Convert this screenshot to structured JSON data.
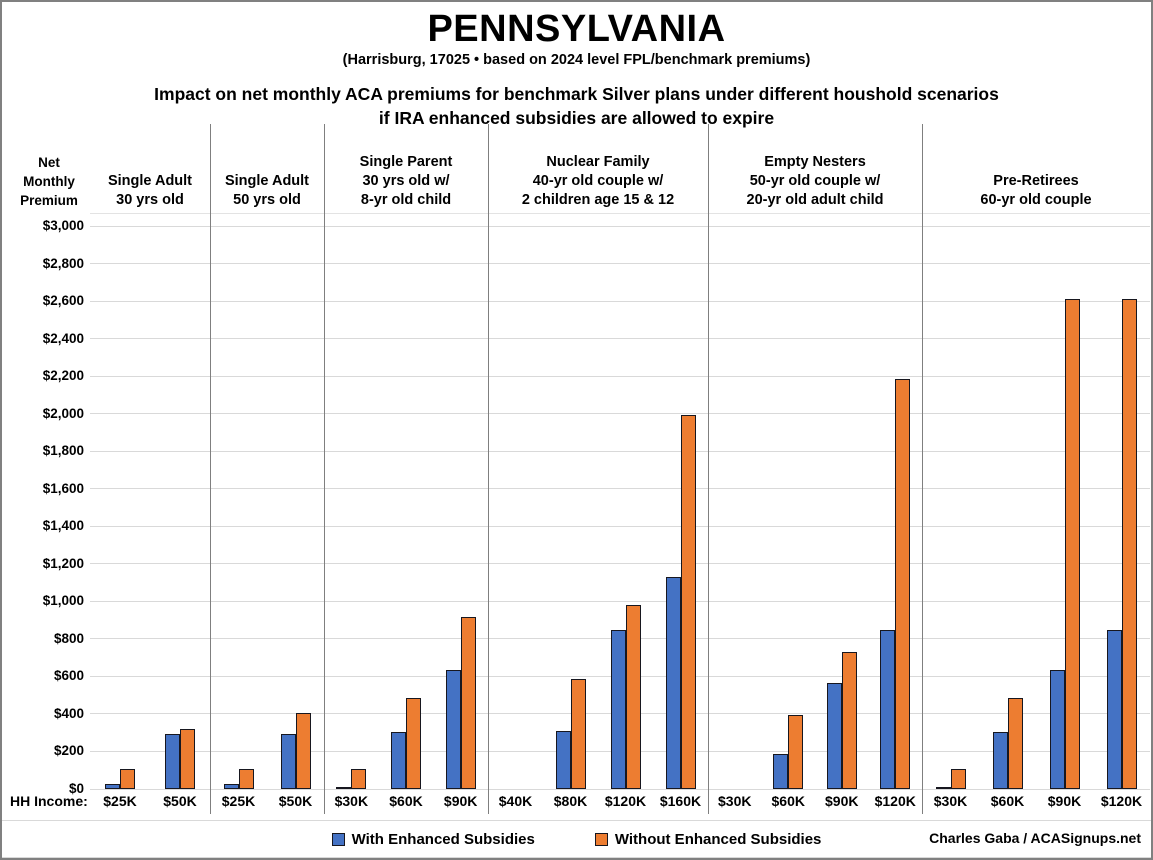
{
  "header": {
    "title": "PENNSYLVANIA",
    "subtitle": "(Harrisburg, 17025 • based on 2024 level FPL/benchmark premiums)",
    "heading_line1": "Impact on net monthly ACA premiums for benchmark Silver plans under different houshold scenarios",
    "heading_line2": "if IRA enhanced subsidies are allowed to expire"
  },
  "axis": {
    "y_title_lines": [
      "Net",
      "Monthly",
      "Premium"
    ],
    "y_ticks": [
      "$0",
      "$200",
      "$400",
      "$600",
      "$800",
      "$1,000",
      "$1,200",
      "$1,400",
      "$1,600",
      "$1,800",
      "$2,000",
      "$2,200",
      "$2,400",
      "$2,600",
      "$2,800",
      "$3,000"
    ],
    "x_axis_label": "HH Income:"
  },
  "legend": {
    "with_label": "With Enhanced Subsidies",
    "without_label": "Without Enhanced Subsidies"
  },
  "credit": "Charles Gaba / ACASignups.net",
  "colors": {
    "with_enhanced": "#4472C4",
    "without_enhanced": "#ED7D31",
    "gridline": "#d9d9d9",
    "divider": "#7f7f7f"
  },
  "chart_data": {
    "type": "bar",
    "title": "Impact on net monthly ACA premiums for benchmark Silver plans under different houshold scenarios if IRA enhanced subsidies are allowed to expire",
    "ylabel": "Net Monthly Premium",
    "xlabel": "HH Income",
    "ylim": [
      0,
      3000
    ],
    "y_step": 200,
    "grid": true,
    "legend_position": "bottom",
    "series_names": [
      "With Enhanced Subsidies",
      "Without Enhanced Subsidies"
    ],
    "groups": [
      {
        "label_lines": [
          "Single Adult",
          "30 yrs old"
        ],
        "categories": [
          "$25K",
          "$50K"
        ],
        "with_enhanced": [
          25,
          295
        ],
        "without_enhanced": [
          105,
          320
        ]
      },
      {
        "label_lines": [
          "Single Adult",
          "50 yrs old"
        ],
        "categories": [
          "$25K",
          "$50K"
        ],
        "with_enhanced": [
          25,
          295
        ],
        "without_enhanced": [
          105,
          405
        ]
      },
      {
        "label_lines": [
          "Single Parent",
          "30 yrs old w/",
          "8-yr old child"
        ],
        "categories": [
          "$30K",
          "$60K",
          "$90K"
        ],
        "with_enhanced": [
          10,
          305,
          635
        ],
        "without_enhanced": [
          105,
          485,
          915
        ]
      },
      {
        "label_lines": [
          "Nuclear Family",
          "40-yr old couple w/",
          "2 children age 15 & 12"
        ],
        "categories": [
          "$40K",
          "$80K",
          "$120K",
          "$160K"
        ],
        "with_enhanced": [
          0,
          310,
          845,
          1130
        ],
        "without_enhanced": [
          0,
          585,
          980,
          1995
        ]
      },
      {
        "label_lines": [
          "Empty Nesters",
          "50-yr old couple w/",
          "20-yr old adult child"
        ],
        "categories": [
          "$30K",
          "$60K",
          "$90K",
          "$120K"
        ],
        "with_enhanced": [
          0,
          185,
          565,
          845
        ],
        "without_enhanced": [
          0,
          395,
          730,
          2185
        ]
      },
      {
        "label_lines": [
          "Pre-Retirees",
          "60-yr old couple"
        ],
        "categories": [
          "$30K",
          "$60K",
          "$90K",
          "$120K"
        ],
        "with_enhanced": [
          10,
          305,
          635,
          845
        ],
        "without_enhanced": [
          105,
          485,
          2610,
          2610
        ]
      }
    ]
  }
}
